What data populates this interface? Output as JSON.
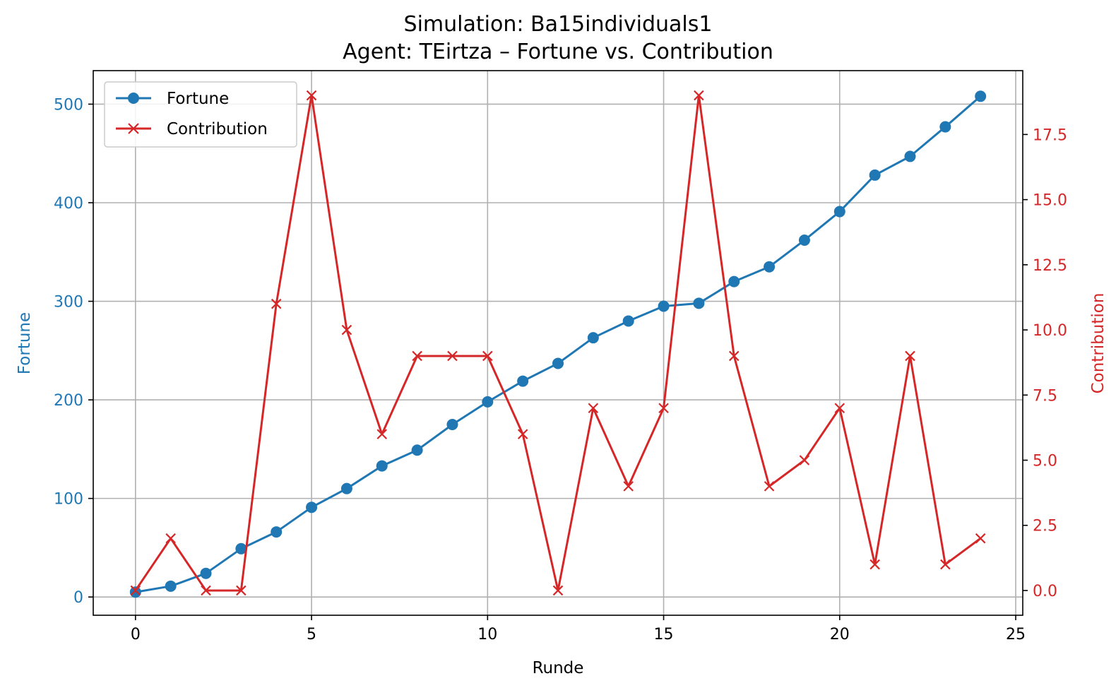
{
  "chart_data": {
    "type": "line",
    "title_line1": "Simulation: Ba15individuals1",
    "title_line2": "Agent: TEirtza – Fortune vs. Contribution",
    "xlabel": "Runde",
    "ylabel_left": "Fortune",
    "ylabel_right": "Contribution",
    "x": [
      0,
      1,
      2,
      3,
      4,
      5,
      6,
      7,
      8,
      9,
      10,
      11,
      12,
      13,
      14,
      15,
      16,
      17,
      18,
      19,
      20,
      21,
      22,
      23,
      24
    ],
    "xlim": [
      -1.2,
      25.2
    ],
    "xticks": [
      0,
      5,
      10,
      15,
      20,
      25
    ],
    "xtick_labels": [
      "0",
      "5",
      "10",
      "15",
      "20",
      "25"
    ],
    "ylim_left": [
      -18.5,
      534
    ],
    "yticks_left": [
      0,
      100,
      200,
      300,
      400,
      500
    ],
    "ytick_labels_left": [
      "0",
      "100",
      "200",
      "300",
      "400",
      "500"
    ],
    "ylim_right": [
      -0.95,
      19.95
    ],
    "yticks_right": [
      0,
      2.5,
      5,
      7.5,
      10,
      12.5,
      15,
      17.5
    ],
    "ytick_labels_right": [
      "0.0",
      "2.5",
      "5.0",
      "7.5",
      "10.0",
      "12.5",
      "15.0",
      "17.5"
    ],
    "grid": true,
    "legend_position": "top-left",
    "series": [
      {
        "name": "Fortune",
        "axis": "left",
        "color": "#1f77b4",
        "marker": "circle",
        "values": [
          5,
          11,
          24,
          49,
          66,
          91,
          110,
          133,
          149,
          175,
          198,
          219,
          237,
          263,
          280,
          295,
          298,
          320,
          335,
          362,
          391,
          428,
          447,
          477,
          508
        ]
      },
      {
        "name": "Contribution",
        "axis": "right",
        "color": "#d62728",
        "marker": "x",
        "values": [
          0,
          2,
          0,
          0,
          11,
          19,
          10,
          6,
          9,
          9,
          9,
          6,
          0,
          7,
          4,
          7,
          19,
          9,
          4,
          5,
          7,
          1,
          9,
          1,
          2
        ]
      }
    ]
  }
}
